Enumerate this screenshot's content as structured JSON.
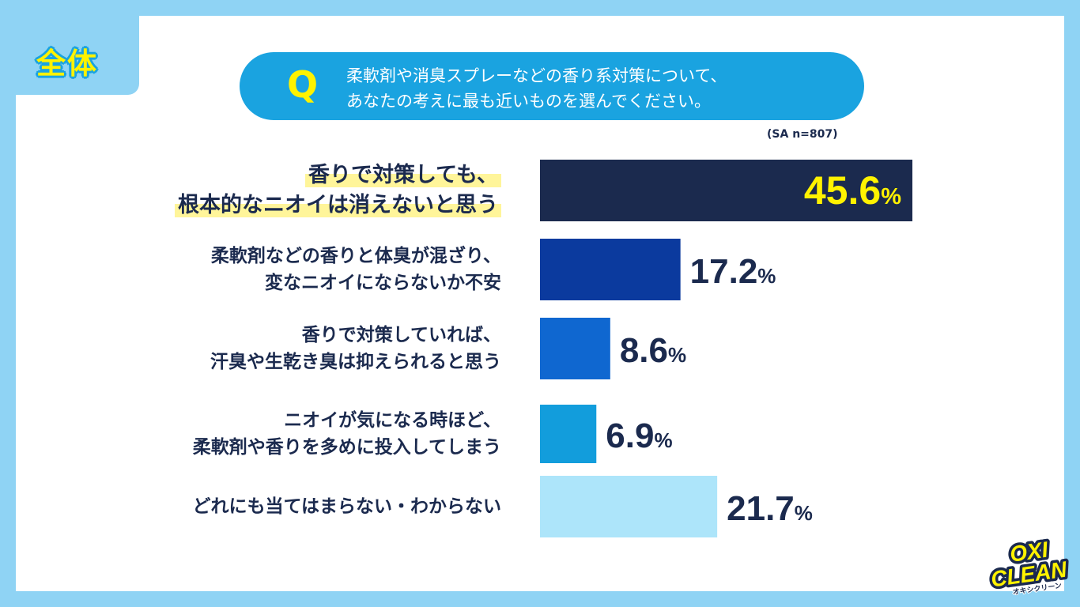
{
  "tag": "全体",
  "question": {
    "letter": "Q",
    "line1": "柔軟剤や消臭スプレーなどの香り系対策について、",
    "line2": "あなたの考えに最も近いものを選んでください。"
  },
  "sample_note": "(SA n=807)",
  "logo": {
    "line1": "OXI",
    "line2": "CLEAN",
    "sub": "オキシクリーン"
  },
  "chart_data": {
    "type": "bar",
    "orientation": "horizontal",
    "categories": [
      [
        "香りで対策しても、",
        "根本的なニオイは消えないと思う"
      ],
      [
        "柔軟剤などの香りと体臭が混ざり、",
        "変なニオイにならないか不安"
      ],
      [
        "香りで対策していれば、",
        "汗臭や生乾き臭は抑えられると思う"
      ],
      [
        "ニオイが気になる時ほど、",
        "柔軟剤や香りを多めに投入してしまう"
      ],
      [
        "どれにも当てはまらない・わからない"
      ]
    ],
    "values": [
      45.6,
      17.2,
      8.6,
      6.9,
      21.7
    ],
    "value_labels": [
      "45.6",
      "17.2",
      "8.6",
      "6.9",
      "21.7"
    ],
    "unit": "%",
    "colors": [
      "#1b2a4e",
      "#0b3a9e",
      "#0f67d0",
      "#129ddc",
      "#ade5fa"
    ],
    "value_label_colors": [
      "#fff200",
      "#1b2a4e",
      "#1b2a4e",
      "#1b2a4e",
      "#1b2a4e"
    ],
    "highlight_index": 0
  }
}
